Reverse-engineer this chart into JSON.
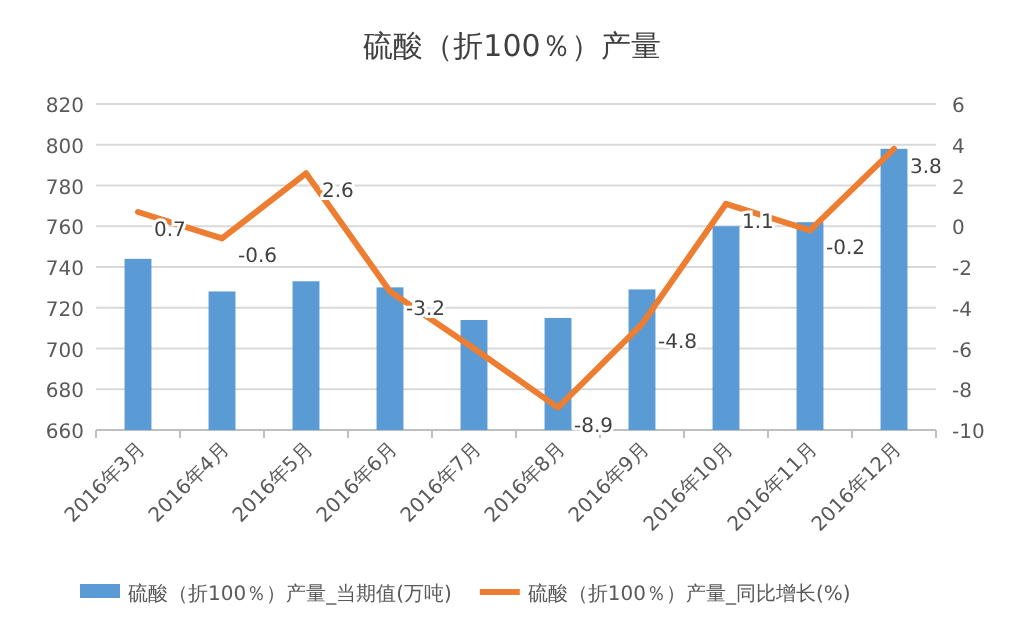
{
  "chart_data": {
    "type": "bar",
    "title": "硫酸（折100％）产量",
    "categories": [
      "2016年3月",
      "2016年4月",
      "2016年5月",
      "2016年6月",
      "2016年7月",
      "2016年8月",
      "2016年9月",
      "2016年10月",
      "2016年11月",
      "2016年12月"
    ],
    "series": [
      {
        "name": "硫酸（折100％）产量_当期值(万吨)",
        "color": "#5b9bd5",
        "values": [
          744,
          728,
          733,
          730,
          714,
          715,
          729,
          760,
          762,
          798
        ]
      },
      {
        "name": "硫酸（折100％）产量_同比增长(%)",
        "type": "line",
        "axis": "y2",
        "color": "#ed7d31",
        "values": [
          0.7,
          -0.6,
          2.6,
          -3.2,
          -6.0,
          -8.9,
          -4.8,
          1.1,
          -0.2,
          3.8
        ],
        "value_labels": [
          "0.7",
          "-0.6",
          "2.6",
          "-3.2",
          null,
          "-8.9",
          "-4.8",
          "1.1",
          "-0.2",
          "3.8"
        ]
      }
    ],
    "ylim": [
      660,
      820
    ],
    "yticks": [
      660,
      680,
      700,
      720,
      740,
      760,
      780,
      800,
      820
    ],
    "y2lim": [
      -10,
      6
    ],
    "y2ticks": [
      -10,
      -8,
      -6,
      -4,
      -2,
      0,
      2,
      4,
      6
    ],
    "grid": "y",
    "legend": "bottom"
  }
}
